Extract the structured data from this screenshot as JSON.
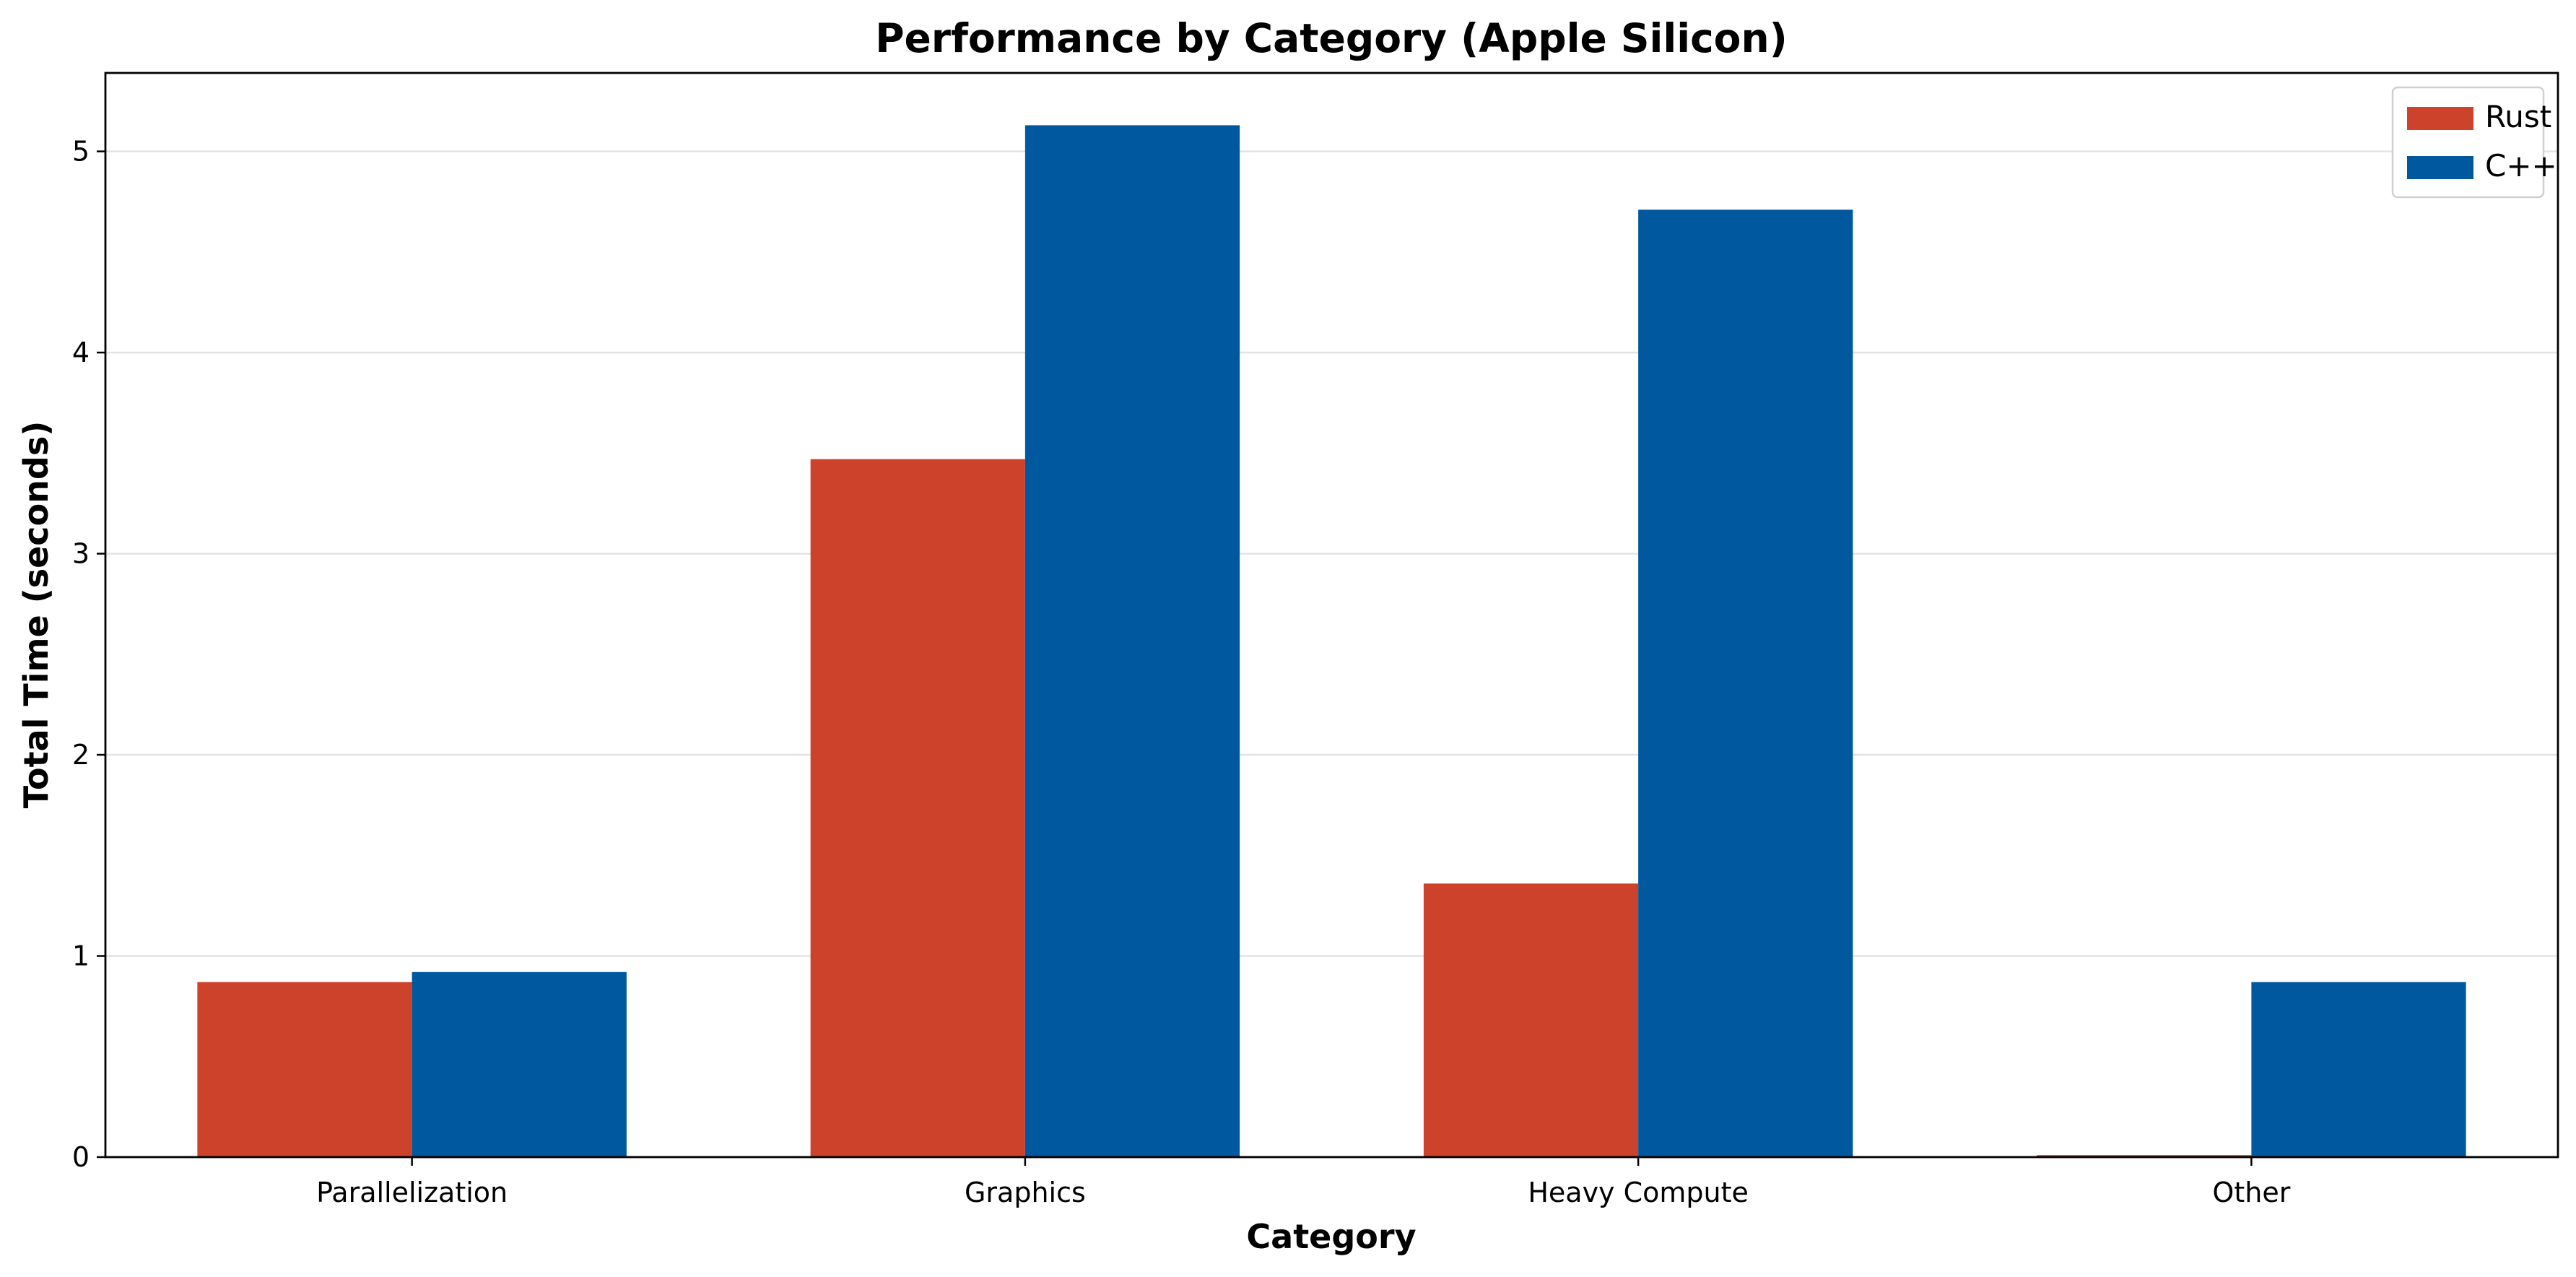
{
  "chart_data": {
    "type": "bar",
    "title": "Performance by Category (Apple Silicon)",
    "xlabel": "Category",
    "ylabel": "Total Time (seconds)",
    "categories": [
      "Parallelization",
      "Graphics",
      "Heavy Compute",
      "Other"
    ],
    "series": [
      {
        "name": "Rust",
        "color": "#cc422b",
        "values": [
          0.87,
          3.47,
          1.36,
          0.01
        ]
      },
      {
        "name": "C++",
        "color": "#00589f",
        "values": [
          0.92,
          5.13,
          4.71,
          0.87
        ]
      }
    ],
    "ylim": [
      0,
      5.39
    ],
    "yticks": [
      0,
      1,
      2,
      3,
      4,
      5
    ],
    "grid": "horizontal",
    "legend_position": "top-right"
  }
}
